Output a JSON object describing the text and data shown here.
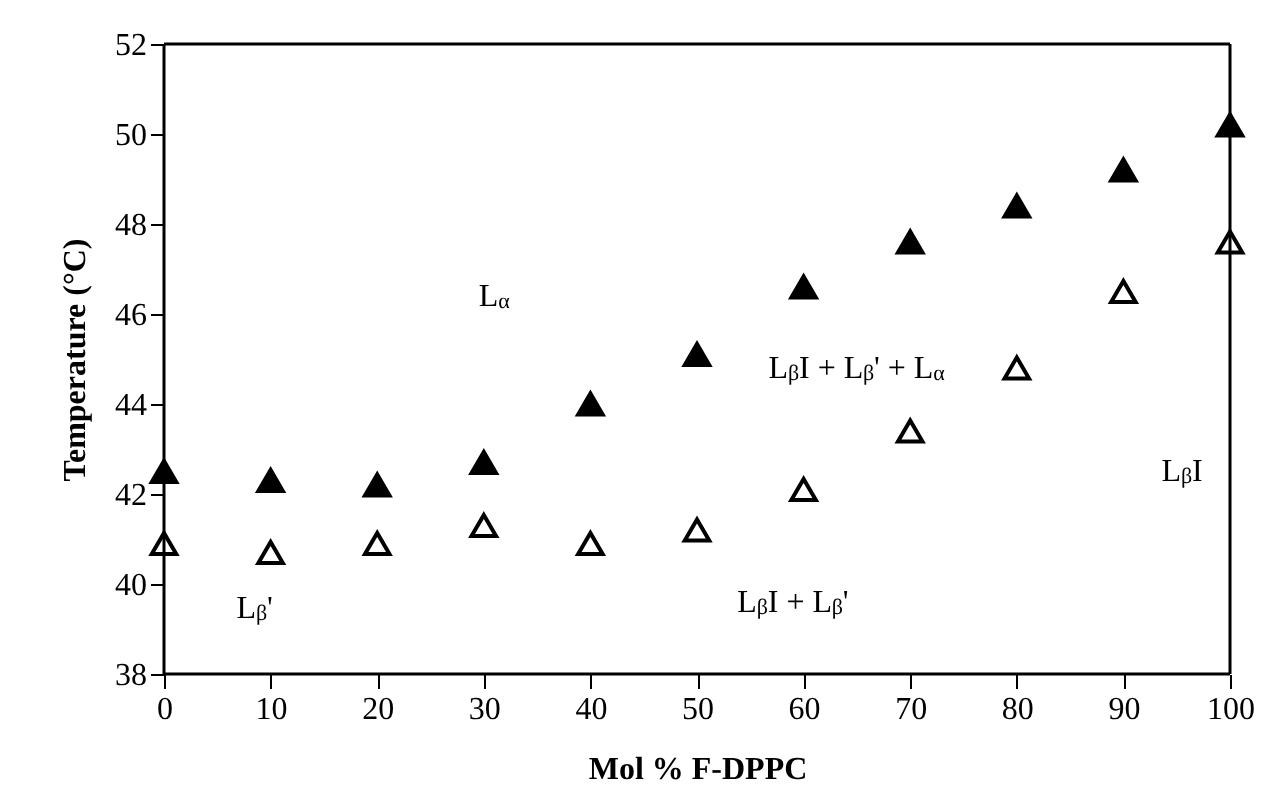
{
  "chart_data": {
    "type": "scatter",
    "xlabel": "Mol % F-DPPC",
    "ylabel": "Temperature (°C)",
    "x": [
      0,
      10,
      20,
      30,
      40,
      50,
      60,
      70,
      80,
      90,
      100
    ],
    "series": [
      {
        "color": "#000000",
        "marker": "triangle",
        "values": [
          42.5,
          42.3,
          42.2,
          42.7,
          44.0,
          45.1,
          46.6,
          47.6,
          48.4,
          49.2,
          50.2
        ]
      },
      {
        "color": "#000000",
        "marker": "triangle",
        "values": [
          40.9,
          40.7,
          40.9,
          41.3,
          40.9,
          41.2,
          42.1,
          43.4,
          44.8,
          46.5,
          47.6
        ]
      }
    ],
    "xlim": [
      0,
      100
    ],
    "xticks": [
      0,
      10,
      20,
      30,
      40,
      50,
      60,
      70,
      80,
      90,
      100
    ],
    "ylim": [
      38,
      52
    ],
    "yticks": [
      38,
      40,
      42,
      44,
      46,
      48,
      50,
      52
    ],
    "grid": false,
    "legend": false,
    "annotations": [
      "L$_{α}$",
      "L$_{β}$'",
      "L$_{β}$I + L$_{β}$' + L$_{α}$",
      "L$_{β}$I + L$_{β}$'",
      "L$_{β}$I"
    ]
  }
}
